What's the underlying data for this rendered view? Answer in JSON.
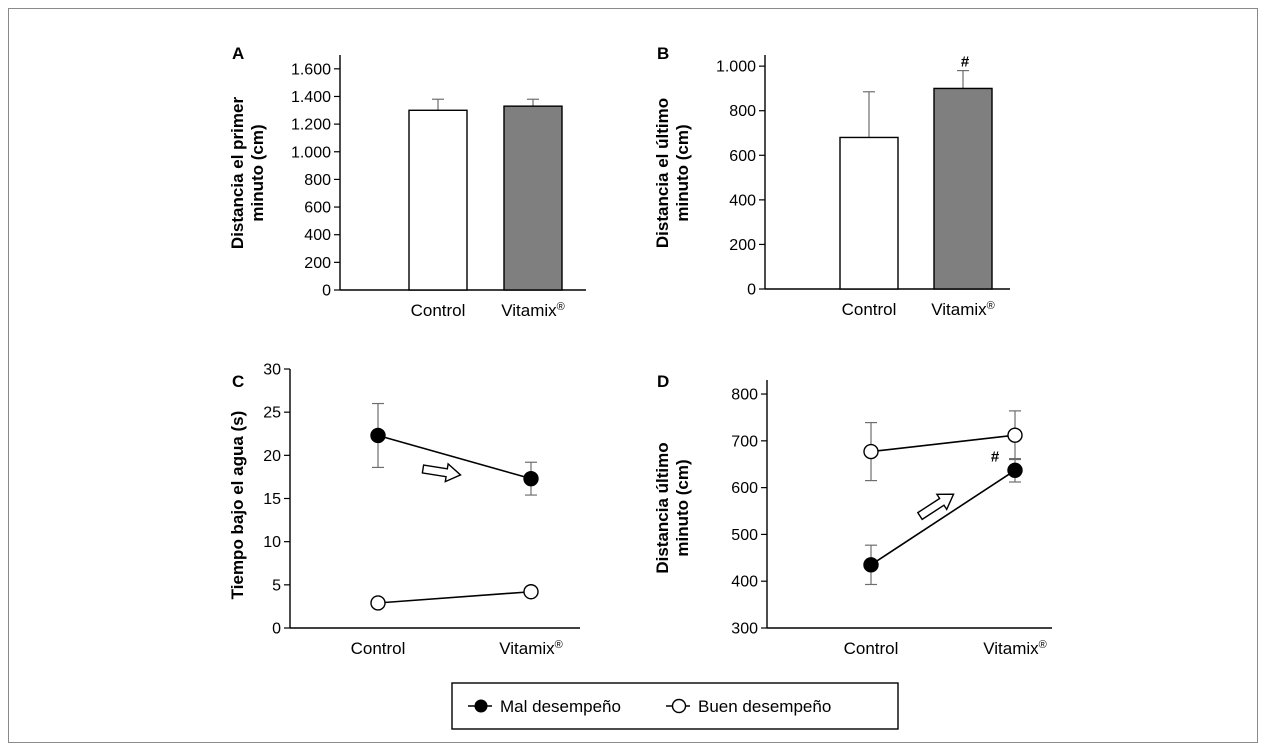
{
  "chart_data": [
    {
      "panel": "A",
      "type": "bar",
      "ylabel": "Distancia el primer minuto (cm)",
      "categories": [
        "Control",
        "Vitamix®"
      ],
      "values": [
        1300,
        1330
      ],
      "errors": [
        80,
        50
      ],
      "bar_colors": [
        "#ffffff",
        "#7f7f7f"
      ],
      "ylim": [
        0,
        1700
      ],
      "yticks": [
        0,
        200,
        400,
        600,
        800,
        1000,
        1200,
        1400,
        1600
      ],
      "ytick_labels": [
        "0",
        "200",
        "400",
        "600",
        "800",
        "1.000",
        "1.200",
        "1.400",
        "1.600"
      ],
      "annotations": []
    },
    {
      "panel": "B",
      "type": "bar",
      "ylabel": "Distancia el último minuto (cm)",
      "categories": [
        "Control",
        "Vitamix®"
      ],
      "values": [
        680,
        900
      ],
      "errors": [
        205,
        80
      ],
      "bar_colors": [
        "#ffffff",
        "#7f7f7f"
      ],
      "ylim": [
        0,
        1050
      ],
      "yticks": [
        0,
        200,
        400,
        600,
        800,
        1000
      ],
      "ytick_labels": [
        "0",
        "200",
        "400",
        "600",
        "800",
        "1.000"
      ],
      "annotations": [
        {
          "category": "Vitamix®",
          "text": "#"
        }
      ]
    },
    {
      "panel": "C",
      "type": "line",
      "ylabel": "Tiempo bajo el agua (s)",
      "categories": [
        "Control",
        "Vitamix®"
      ],
      "ylim": [
        0,
        30
      ],
      "yticks": [
        0,
        5,
        10,
        15,
        20,
        25,
        30
      ],
      "ytick_labels": [
        "0",
        "5",
        "10",
        "15",
        "20",
        "25",
        "30"
      ],
      "series": [
        {
          "name": "Mal desempeño",
          "values": [
            22.3,
            17.3
          ],
          "errors": [
            3.7,
            1.9
          ],
          "marker": "filled"
        },
        {
          "name": "Buen desempeño",
          "values": [
            2.9,
            4.2
          ],
          "errors": [
            0.4,
            0.3
          ],
          "marker": "open"
        }
      ],
      "annotations": []
    },
    {
      "panel": "D",
      "type": "line",
      "ylabel": "Distancia último minuto (cm)",
      "categories": [
        "Control",
        "Vitamix®"
      ],
      "ylim": [
        300,
        830
      ],
      "yticks": [
        300,
        400,
        500,
        600,
        700,
        800
      ],
      "ytick_labels": [
        "300",
        "400",
        "500",
        "600",
        "700",
        "800"
      ],
      "series": [
        {
          "name": "Mal desempeño",
          "values": [
            435,
            637
          ],
          "errors": [
            42,
            25
          ],
          "marker": "filled"
        },
        {
          "name": "Buen desempeño",
          "values": [
            677,
            712
          ],
          "errors": [
            62,
            52
          ],
          "marker": "open"
        }
      ],
      "annotations": [
        {
          "category": "Vitamix®",
          "text": "#"
        }
      ]
    }
  ],
  "legend": {
    "items": [
      {
        "label": "Mal desempeño",
        "marker": "filled"
      },
      {
        "label": "Buen desempeño",
        "marker": "open"
      }
    ]
  },
  "colors": {
    "bar_vitamix": "#7f7f7f",
    "bar_control": "#ffffff",
    "error_bar": "#6e6e6e"
  }
}
